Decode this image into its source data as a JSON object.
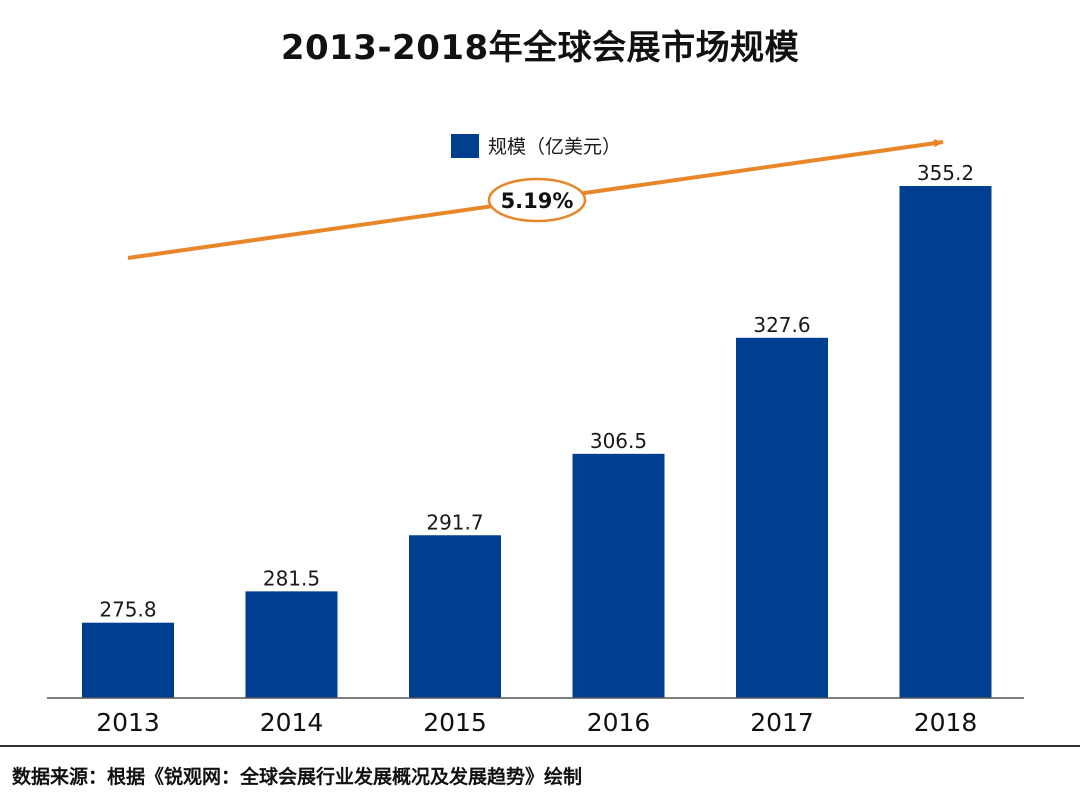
{
  "title": "2013-2018年全球会展市场规模",
  "source_note": "数据来源：根据《锐观网：全球会展行业发展概况及发展趋势》绘制",
  "colors": {
    "bar": "#003f8f",
    "trend_arrow": "#e8862a",
    "baseline": "#555555"
  },
  "chart_data": {
    "type": "bar",
    "categories": [
      "2013",
      "2014",
      "2015",
      "2016",
      "2017",
      "2018"
    ],
    "series": [
      {
        "name": "规模（亿美元）",
        "values": [
          275.8,
          281.5,
          291.7,
          306.5,
          327.6,
          355.2
        ]
      }
    ],
    "data_labels": [
      "275.8",
      "281.5",
      "291.7",
      "306.5",
      "327.6",
      "355.2"
    ],
    "annotation": "5.19%",
    "legend_position": "top-center",
    "grid": false,
    "ylim": [
      0,
      360
    ]
  }
}
